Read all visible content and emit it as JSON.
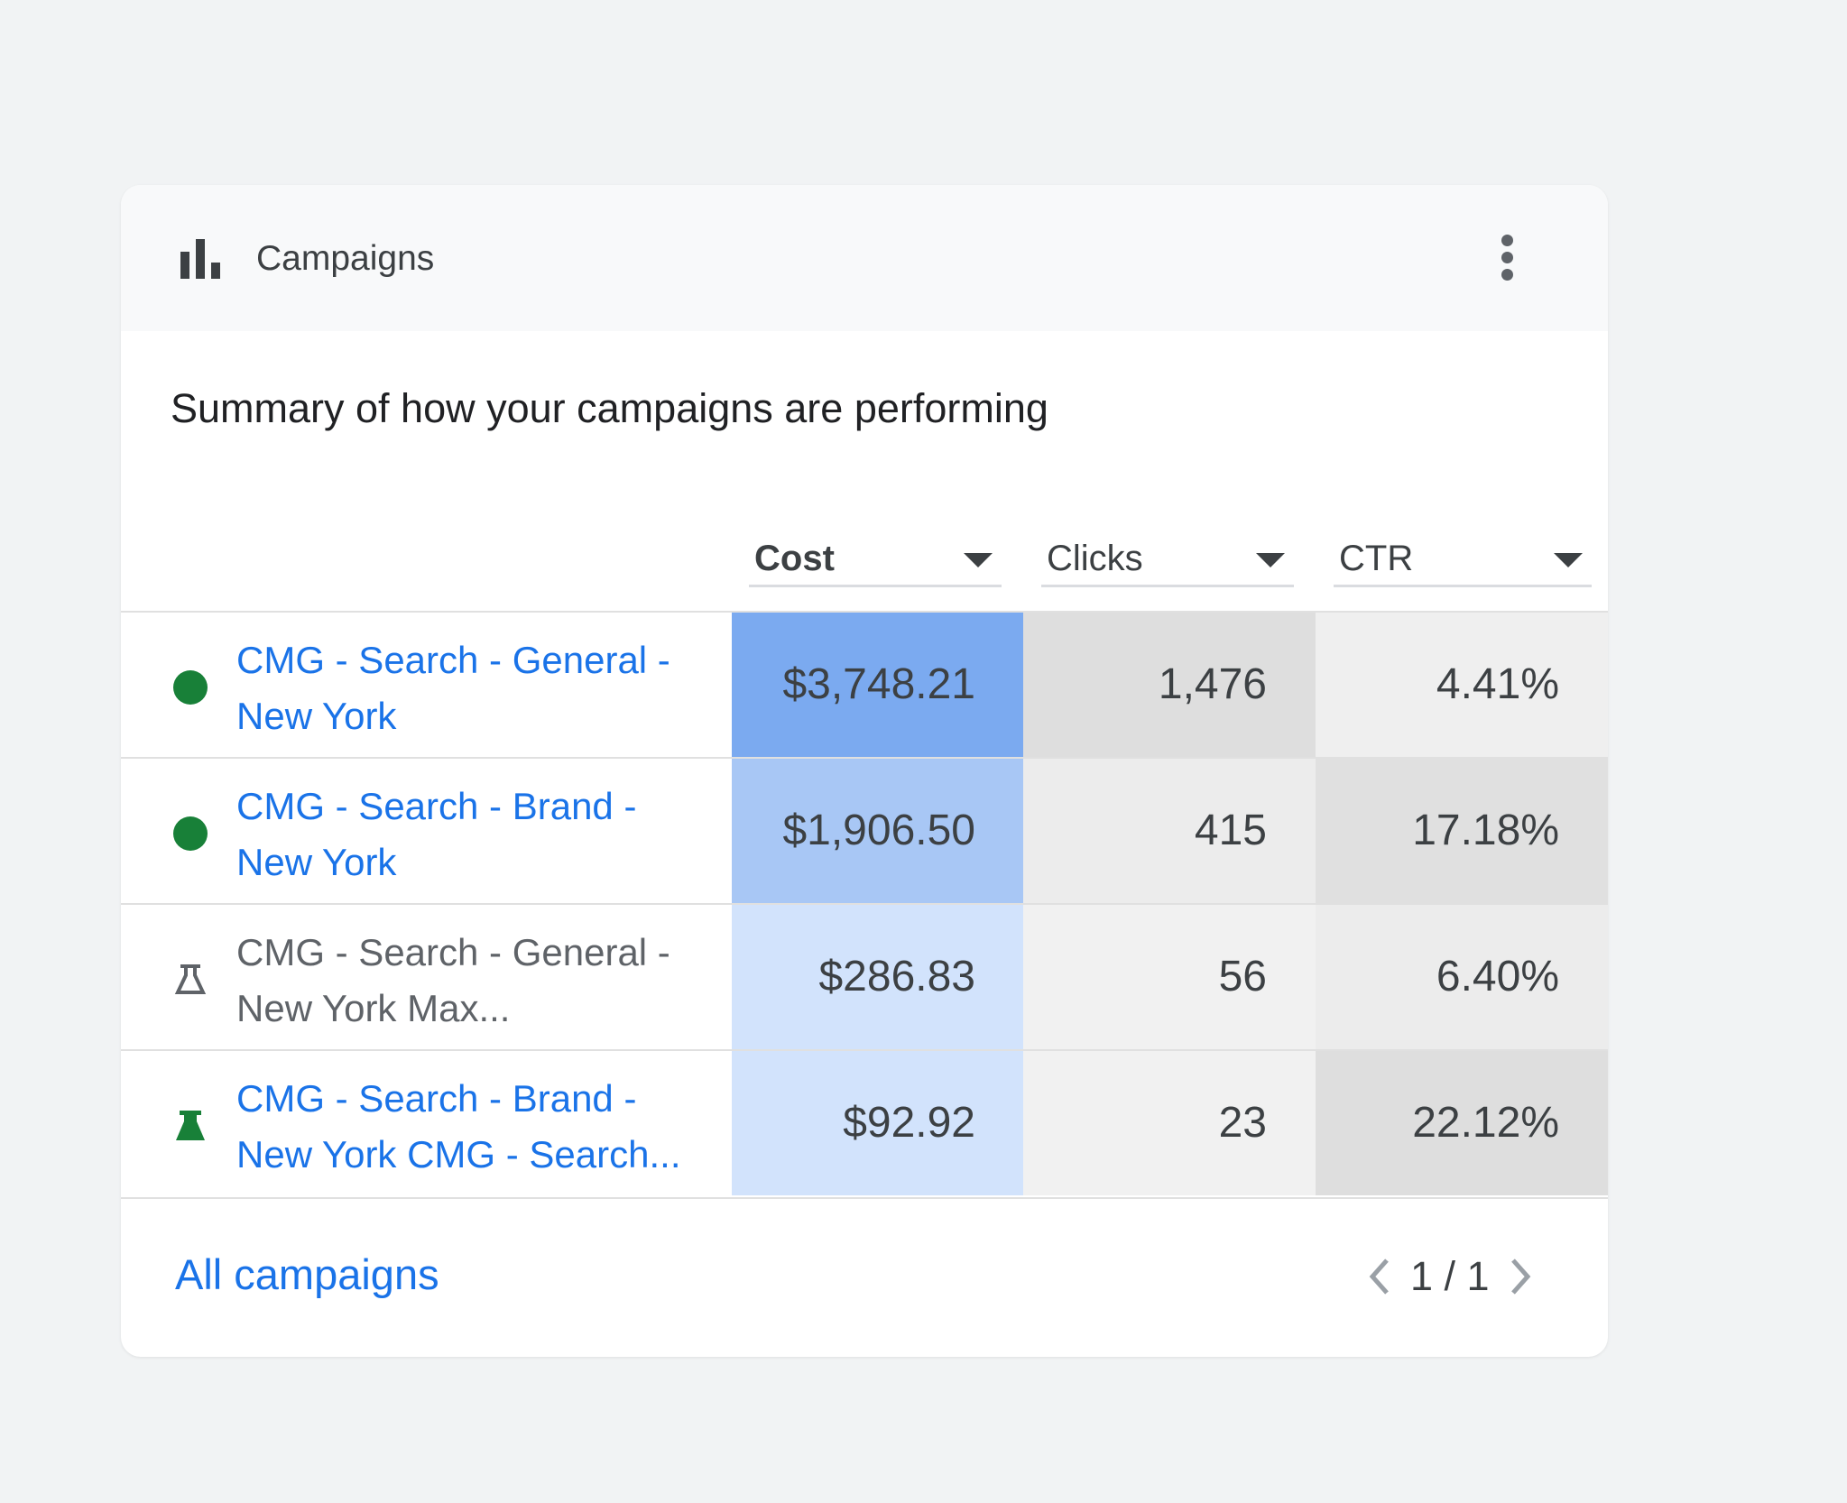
{
  "card": {
    "title": "Campaigns",
    "subtitle": "Summary of how your campaigns are performing"
  },
  "columns": [
    {
      "label": "Cost"
    },
    {
      "label": "Clicks"
    },
    {
      "label": "CTR"
    }
  ],
  "rows": [
    {
      "name": "CMG - Search - General - New York",
      "status": "enabled",
      "cost": "$3,748.21",
      "clicks": "1,476",
      "ctr": "4.41%"
    },
    {
      "name": "CMG - Search - Brand - New York",
      "status": "enabled",
      "cost": "$1,906.50",
      "clicks": "415",
      "ctr": "17.18%"
    },
    {
      "name": "CMG - Search - General - New York Max...",
      "status": "experiment-inactive",
      "cost": "$286.83",
      "clicks": "56",
      "ctr": "6.40%"
    },
    {
      "name": "CMG - Search - Brand - New York CMG - Search...",
      "status": "experiment-active",
      "cost": "$92.92",
      "clicks": "23",
      "ctr": "22.12%"
    }
  ],
  "footer": {
    "link": "All campaigns",
    "page": "1 / 1"
  },
  "colors": {
    "link": "#1a73e8",
    "green": "#188038"
  }
}
